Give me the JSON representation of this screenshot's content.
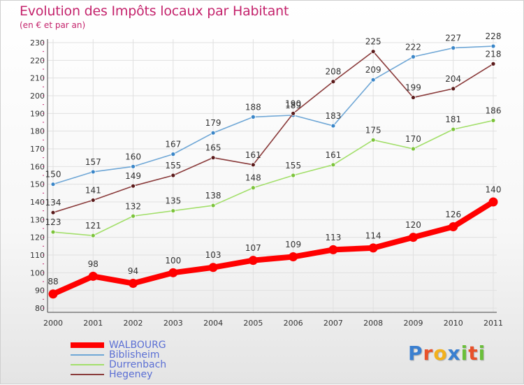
{
  "header": {
    "title": "Evolution des Impôts locaux par Habitant",
    "subtitle": "(en € et par an)"
  },
  "brand": {
    "text": "Proxiti",
    "letter_colors": [
      "#3a7fd0",
      "#e8512a",
      "#f2b11d",
      "#3a7fd0",
      "#6bbf3a",
      "#e8512a",
      "#6bbf3a"
    ]
  },
  "legend": {
    "position": "bottom-left",
    "items": [
      {
        "label": "WALBOURG",
        "color": "#ff0000"
      },
      {
        "label": "Biblisheim",
        "color": "#6fa7d6"
      },
      {
        "label": "Durrenbach",
        "color": "#a3df6b"
      },
      {
        "label": "Hegeney",
        "color": "#8a3b3b"
      }
    ]
  },
  "chart_data": {
    "type": "line",
    "title": "Evolution des Impôts locaux par Habitant",
    "subtitle": "(en € et par an)",
    "x": [
      "2000",
      "2001",
      "2002",
      "2003",
      "2004",
      "2005",
      "2006",
      "2007",
      "2008",
      "2009",
      "2010",
      "2011"
    ],
    "ylim": [
      80,
      230
    ],
    "yticks": [
      80,
      90,
      100,
      110,
      120,
      130,
      140,
      150,
      160,
      170,
      180,
      190,
      200,
      210,
      220,
      230
    ],
    "grid": true,
    "series": [
      {
        "name": "Biblisheim",
        "color": "#6fa7d6",
        "marker": "#3a86c8",
        "values": [
          150,
          157,
          160,
          167,
          179,
          188,
          189,
          183,
          209,
          222,
          227,
          228
        ],
        "labels": [
          "150",
          "157",
          "160",
          "167",
          "179",
          "188",
          "189",
          "183",
          "209",
          "222",
          "227",
          "228"
        ]
      },
      {
        "name": "Hegeney",
        "color": "#8a3b3b",
        "marker": "#5a1a1a",
        "values": [
          134,
          141,
          149,
          155,
          165,
          161,
          190,
          208,
          225,
          199,
          204,
          218
        ],
        "labels": [
          "134",
          "141",
          "149",
          "155",
          "165",
          "161",
          "190",
          "208",
          "225",
          "199",
          "204",
          "218"
        ]
      },
      {
        "name": "Durrenbach",
        "color": "#a3df6b",
        "marker": "#7cc33b",
        "values": [
          123,
          121,
          132,
          135,
          138,
          148,
          155,
          161,
          175,
          170,
          181,
          186
        ],
        "labels": [
          "123",
          "121",
          "132",
          "135",
          "138",
          "148",
          "155",
          "161",
          "175",
          "170",
          "181",
          "186"
        ]
      },
      {
        "name": "WALBOURG",
        "color": "#ff0000",
        "marker": "#ff0000",
        "values": [
          88,
          98,
          94,
          100,
          103,
          107,
          109,
          113,
          114,
          120,
          126,
          140
        ],
        "labels": [
          "88",
          "98",
          "94",
          "100",
          "103",
          "107",
          "109",
          "113",
          "114",
          "120",
          "126",
          "140"
        ]
      }
    ]
  }
}
